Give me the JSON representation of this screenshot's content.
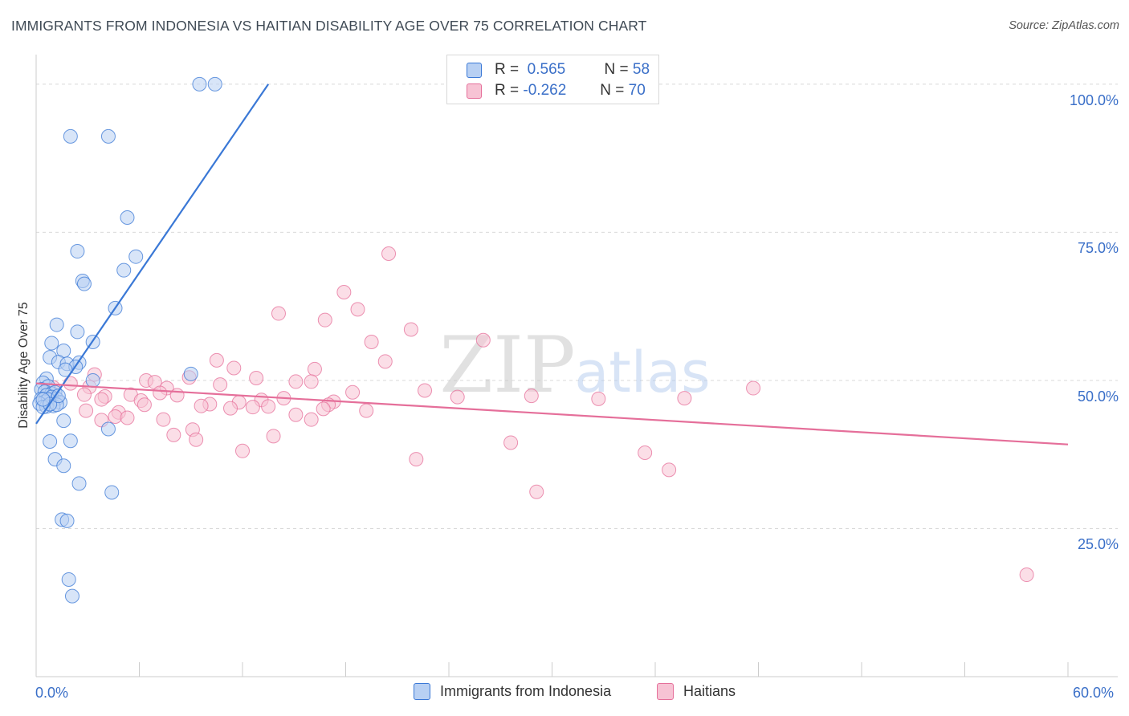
{
  "title": "IMMIGRANTS FROM INDONESIA VS HAITIAN DISABILITY AGE OVER 75 CORRELATION CHART",
  "source": "Source: ZipAtlas.com",
  "colors": {
    "blue": "#3a78d6",
    "blue_fill": "#b8d0f3",
    "pink": "#e56f9a",
    "pink_fill": "#f7c3d4",
    "grid": "#d9d9d9",
    "label_blue": "#3a6fc8"
  },
  "legend": {
    "rows": [
      {
        "r_label": "R =",
        "r_value": "0.565",
        "n_label": "N =",
        "n_value": "58"
      },
      {
        "r_label": "R =",
        "r_value": "-0.262",
        "n_label": "N =",
        "n_value": "70"
      }
    ]
  },
  "bottom_legend": {
    "series1": "Immigrants from Indonesia",
    "series2": "Haitians"
  },
  "watermark": {
    "zip": "ZIP",
    "atlas": "atlas"
  },
  "chart_data": {
    "type": "scatter",
    "title": "IMMIGRANTS FROM INDONESIA VS HAITIAN DISABILITY AGE OVER 75 CORRELATION CHART",
    "xlabel": "",
    "ylabel": "Disability Age Over 75",
    "xlim": [
      0,
      60
    ],
    "ylim": [
      0,
      105
    ],
    "x_tick_labels": [
      "0.0%",
      "60.0%"
    ],
    "y_ticks": [
      25,
      50,
      75,
      100
    ],
    "y_tick_labels": [
      "25.0%",
      "50.0%",
      "75.0%",
      "100.0%"
    ],
    "grid": true,
    "series": [
      {
        "name": "Immigrants from Indonesia",
        "color": "#3a78d6",
        "trend": {
          "x": [
            0,
            13.5
          ],
          "y": [
            42.7,
            100.0
          ]
        },
        "points": [
          [
            9.5,
            100.0
          ],
          [
            10.4,
            100.0
          ],
          [
            2.0,
            91.2
          ],
          [
            4.2,
            91.2
          ],
          [
            5.3,
            77.5
          ],
          [
            2.4,
            71.8
          ],
          [
            5.8,
            70.9
          ],
          [
            5.1,
            68.6
          ],
          [
            2.7,
            66.8
          ],
          [
            2.8,
            66.3
          ],
          [
            4.6,
            62.2
          ],
          [
            1.2,
            59.4
          ],
          [
            2.4,
            58.2
          ],
          [
            3.3,
            56.5
          ],
          [
            0.9,
            56.3
          ],
          [
            1.6,
            55.0
          ],
          [
            0.8,
            53.9
          ],
          [
            1.3,
            53.1
          ],
          [
            2.5,
            53.0
          ],
          [
            1.8,
            52.8
          ],
          [
            2.3,
            52.3
          ],
          [
            1.7,
            51.8
          ],
          [
            9.0,
            51.1
          ],
          [
            3.3,
            50.0
          ],
          [
            0.6,
            50.3
          ],
          [
            0.4,
            49.6
          ],
          [
            0.7,
            49.0
          ],
          [
            0.3,
            48.5
          ],
          [
            0.5,
            48.1
          ],
          [
            0.9,
            47.8
          ],
          [
            1.1,
            48.0
          ],
          [
            0.6,
            47.5
          ],
          [
            0.9,
            47.2
          ],
          [
            1.2,
            46.9
          ],
          [
            0.3,
            46.9
          ],
          [
            0.5,
            46.4
          ],
          [
            0.7,
            46.8
          ],
          [
            1.4,
            46.3
          ],
          [
            0.2,
            46.1
          ],
          [
            1.0,
            45.7
          ],
          [
            0.6,
            45.6
          ],
          [
            1.2,
            45.9
          ],
          [
            0.4,
            45.5
          ],
          [
            0.8,
            46.0
          ],
          [
            1.6,
            43.2
          ],
          [
            4.2,
            41.8
          ],
          [
            0.8,
            39.7
          ],
          [
            2.0,
            39.8
          ],
          [
            1.1,
            36.7
          ],
          [
            1.6,
            35.6
          ],
          [
            2.5,
            32.6
          ],
          [
            4.4,
            31.1
          ],
          [
            1.5,
            26.5
          ],
          [
            1.8,
            26.3
          ],
          [
            1.9,
            16.4
          ],
          [
            2.1,
            13.6
          ],
          [
            0.4,
            46.8
          ],
          [
            1.3,
            47.4
          ]
        ]
      },
      {
        "name": "Haitians",
        "color": "#e56f9a",
        "trend": {
          "x": [
            0,
            60
          ],
          "y": [
            49.5,
            39.2
          ]
        },
        "points": [
          [
            20.5,
            71.4
          ],
          [
            17.9,
            64.9
          ],
          [
            14.1,
            61.3
          ],
          [
            18.7,
            62.0
          ],
          [
            16.8,
            60.2
          ],
          [
            21.8,
            58.6
          ],
          [
            19.5,
            56.5
          ],
          [
            26.0,
            56.8
          ],
          [
            10.5,
            53.4
          ],
          [
            20.3,
            53.2
          ],
          [
            11.5,
            52.1
          ],
          [
            16.2,
            51.9
          ],
          [
            8.9,
            50.5
          ],
          [
            6.4,
            50.0
          ],
          [
            12.8,
            50.4
          ],
          [
            15.1,
            49.8
          ],
          [
            16.0,
            49.8
          ],
          [
            6.9,
            49.7
          ],
          [
            3.1,
            48.9
          ],
          [
            10.7,
            49.3
          ],
          [
            7.6,
            48.7
          ],
          [
            22.6,
            48.3
          ],
          [
            41.7,
            48.7
          ],
          [
            2.8,
            47.6
          ],
          [
            5.5,
            47.6
          ],
          [
            4.0,
            47.3
          ],
          [
            8.2,
            47.5
          ],
          [
            3.8,
            46.8
          ],
          [
            6.1,
            46.6
          ],
          [
            13.1,
            46.7
          ],
          [
            28.8,
            47.4
          ],
          [
            32.7,
            46.9
          ],
          [
            37.7,
            47.0
          ],
          [
            10.1,
            46.0
          ],
          [
            11.8,
            46.3
          ],
          [
            17.3,
            46.4
          ],
          [
            17.0,
            45.9
          ],
          [
            6.3,
            45.9
          ],
          [
            9.6,
            45.7
          ],
          [
            12.6,
            45.5
          ],
          [
            13.5,
            45.6
          ],
          [
            11.3,
            45.3
          ],
          [
            2.9,
            44.9
          ],
          [
            4.8,
            44.6
          ],
          [
            16.7,
            45.2
          ],
          [
            19.2,
            44.9
          ],
          [
            4.6,
            43.9
          ],
          [
            5.3,
            43.7
          ],
          [
            7.4,
            43.4
          ],
          [
            3.8,
            43.3
          ],
          [
            15.1,
            44.2
          ],
          [
            16.0,
            43.4
          ],
          [
            9.1,
            41.7
          ],
          [
            8.0,
            40.8
          ],
          [
            13.8,
            40.6
          ],
          [
            9.3,
            40.0
          ],
          [
            27.6,
            39.5
          ],
          [
            12.0,
            38.1
          ],
          [
            35.4,
            37.8
          ],
          [
            22.1,
            36.7
          ],
          [
            36.8,
            34.9
          ],
          [
            29.1,
            31.2
          ],
          [
            57.6,
            17.2
          ],
          [
            3.4,
            51.0
          ],
          [
            1.0,
            48.8
          ],
          [
            2.0,
            49.5
          ],
          [
            7.2,
            47.9
          ],
          [
            14.4,
            47.0
          ],
          [
            18.4,
            48.0
          ],
          [
            24.5,
            47.2
          ]
        ]
      }
    ]
  }
}
